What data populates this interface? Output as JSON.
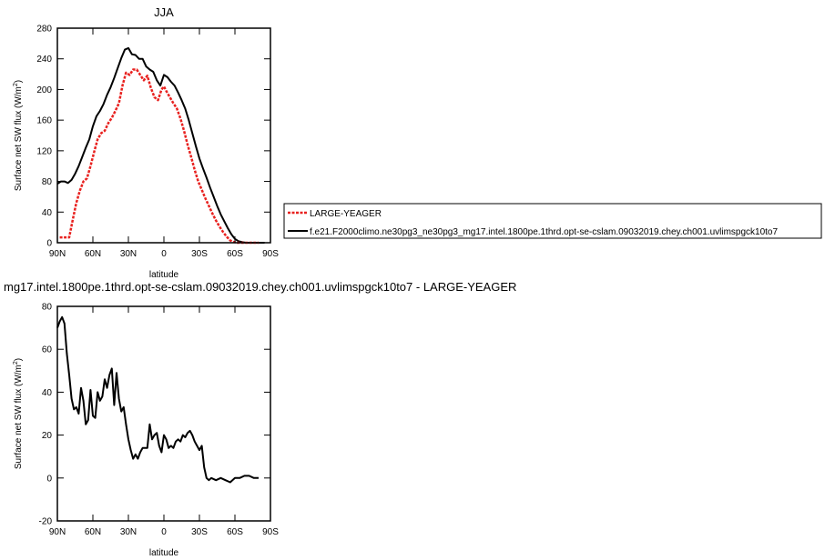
{
  "chart_data": [
    {
      "type": "line",
      "title": "JJA",
      "xlabel": "latitude",
      "ylabel": "Surface net SW flux (W/m",
      "ylabel_sup": "2",
      "ylabel_close": ")",
      "xlim": [
        -90,
        90
      ],
      "ylim": [
        0,
        280
      ],
      "xtick_values": [
        -90,
        -60,
        -30,
        0,
        30,
        60,
        90
      ],
      "xtick_labels": [
        "90N",
        "60N",
        "30N",
        "0",
        "30S",
        "60S",
        "90S"
      ],
      "ytick_values": [
        0,
        40,
        80,
        120,
        160,
        200,
        240,
        280
      ],
      "ytick_labels": [
        "0",
        "40",
        "80",
        "120",
        "160",
        "200",
        "240",
        "280"
      ],
      "grid": false,
      "legend_position": "right",
      "series": [
        {
          "name": "LARGE-YEAGER",
          "color": "#e8211f",
          "dashed": true,
          "x": [
            -88,
            -83,
            -80,
            -77,
            -74,
            -71,
            -68,
            -65,
            -62,
            -59,
            -56,
            -53,
            -50,
            -47,
            -44,
            -41,
            -38,
            -35,
            -32,
            -29,
            -26,
            -23,
            -20,
            -17,
            -14,
            -11,
            -8,
            -5,
            -2,
            0,
            2,
            5,
            8,
            11,
            14,
            17,
            20,
            23,
            26,
            29,
            32,
            35,
            38,
            41,
            44,
            47,
            50,
            53,
            56,
            59,
            62,
            65,
            68,
            71,
            74,
            77,
            80
          ],
          "y": [
            7,
            7,
            7,
            30,
            52,
            68,
            80,
            84,
            100,
            118,
            135,
            143,
            146,
            156,
            163,
            172,
            182,
            205,
            222,
            219,
            226,
            226,
            219,
            212,
            218,
            202,
            190,
            186,
            200,
            204,
            198,
            190,
            182,
            175,
            162,
            146,
            128,
            112,
            95,
            80,
            69,
            58,
            48,
            38,
            29,
            21,
            14,
            8,
            3,
            1,
            0,
            0,
            0,
            0,
            0,
            0,
            0
          ]
        },
        {
          "name": "f.e21.F2000climo.ne30pg3_ne30pg3_mg17.intel.1800pe.1thrd.opt-se-cslam.09032019.chey.ch001.uvlimspgck10to7",
          "color": "#000000",
          "dashed": false,
          "x": [
            -90,
            -87,
            -84,
            -81,
            -78,
            -75,
            -72,
            -69,
            -66,
            -63,
            -60,
            -57,
            -54,
            -51,
            -48,
            -45,
            -42,
            -39,
            -36,
            -33,
            -30,
            -27,
            -24,
            -21,
            -18,
            -15,
            -12,
            -9,
            -6,
            -3,
            0,
            3,
            6,
            9,
            12,
            15,
            18,
            21,
            24,
            27,
            30,
            33,
            36,
            39,
            42,
            45,
            48,
            51,
            54,
            57,
            60,
            63,
            66,
            69,
            72,
            75,
            80,
            85
          ],
          "y": [
            77,
            80,
            80,
            78,
            82,
            90,
            100,
            112,
            124,
            135,
            152,
            165,
            172,
            181,
            193,
            203,
            215,
            228,
            241,
            252,
            254,
            246,
            245,
            240,
            240,
            230,
            226,
            223,
            212,
            205,
            219,
            216,
            210,
            205,
            196,
            186,
            175,
            160,
            143,
            126,
            110,
            97,
            85,
            72,
            60,
            48,
            37,
            28,
            19,
            11,
            5,
            2,
            1,
            0,
            0,
            0,
            0,
            0
          ]
        }
      ]
    },
    {
      "type": "line",
      "title": "mg17.intel.1800pe.1thrd.opt-se-cslam.09032019.chey.ch001.uvlimspgck10to7 - LARGE-YEAGER",
      "xlabel": "latitude",
      "ylabel": "Surface net SW flux (W/m",
      "ylabel_sup": "2",
      "ylabel_close": ")",
      "xlim": [
        -90,
        90
      ],
      "ylim": [
        -20,
        80
      ],
      "xtick_values": [
        -90,
        -60,
        -30,
        0,
        30,
        60,
        90
      ],
      "xtick_labels": [
        "90N",
        "60N",
        "30N",
        "0",
        "30S",
        "60S",
        "90S"
      ],
      "ytick_values": [
        -20,
        0,
        20,
        40,
        60,
        80
      ],
      "ytick_labels": [
        "-20",
        "0",
        "20",
        "40",
        "60",
        "80"
      ],
      "grid": false,
      "series": [
        {
          "color": "#000000",
          "dashed": false,
          "x": [
            -90,
            -88,
            -86,
            -84,
            -82,
            -80,
            -78,
            -76,
            -74,
            -72,
            -70,
            -68,
            -66,
            -64,
            -62,
            -60,
            -58,
            -56,
            -54,
            -52,
            -50,
            -48,
            -46,
            -44,
            -42,
            -40,
            -38,
            -36,
            -34,
            -32,
            -30,
            -28,
            -26,
            -24,
            -22,
            -20,
            -18,
            -16,
            -14,
            -12,
            -10,
            -8,
            -6,
            -4,
            -2,
            0,
            2,
            4,
            6,
            8,
            10,
            12,
            14,
            16,
            18,
            20,
            22,
            24,
            26,
            28,
            30,
            32,
            34,
            36,
            38,
            40,
            44,
            48,
            52,
            56,
            60,
            64,
            68,
            72,
            76,
            80
          ],
          "y": [
            70,
            73,
            75,
            72,
            58,
            48,
            37,
            32,
            33,
            30,
            42,
            36,
            25,
            27,
            41,
            29,
            28,
            40,
            36,
            38,
            46,
            42,
            48,
            51,
            34,
            49,
            37,
            31,
            33,
            25,
            18,
            13,
            9,
            11,
            9,
            12,
            14,
            14,
            14,
            25,
            18,
            20,
            21,
            15,
            12,
            20,
            18,
            14,
            15,
            14,
            17,
            18,
            17,
            20,
            19,
            21,
            22,
            20,
            17,
            15,
            13,
            15,
            5,
            0,
            -1,
            0,
            -1,
            0,
            -1,
            -2,
            0,
            0,
            1,
            1,
            0,
            0
          ]
        }
      ]
    }
  ]
}
